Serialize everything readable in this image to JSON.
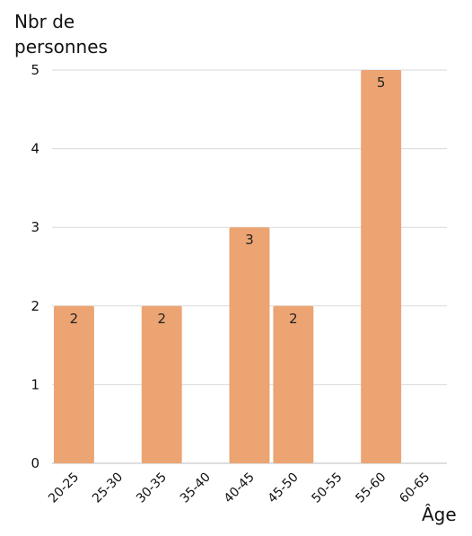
{
  "chart_data": {
    "type": "bar",
    "ylabel": "Nbr de personnes",
    "xlabel": "Âge",
    "categories": [
      "20-25",
      "25-30",
      "30-35",
      "35-40",
      "40-45",
      "45-50",
      "50-55",
      "55-60",
      "60-65"
    ],
    "values": [
      2,
      0,
      2,
      0,
      3,
      2,
      0,
      5,
      0
    ],
    "ylim": [
      0,
      5
    ],
    "yticks": [
      0,
      1,
      2,
      3,
      4,
      5
    ],
    "grid": true,
    "data_labels": true,
    "bar_color": "#eca472",
    "grid_color": "#d9d9d9"
  }
}
